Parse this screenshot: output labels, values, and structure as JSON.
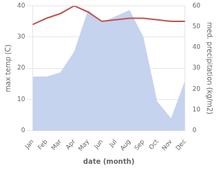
{
  "chart_data": {
    "type": "line",
    "categories": [
      "Jan",
      "Feb",
      "Mar",
      "Apr",
      "May",
      "Jun",
      "Jul",
      "Aug",
      "Sep",
      "Oct",
      "Nov",
      "Dec"
    ],
    "xlabel": "date (month)",
    "ylabel": "max temp (C)",
    "y2label": "med. precipitation (kg/m2)",
    "series": [
      {
        "type": "area",
        "color": "#c5d3ee",
        "axis": "y2",
        "values": [
          26,
          26,
          28,
          38,
          58,
          52,
          55,
          58,
          45,
          14,
          6,
          24
        ]
      },
      {
        "type": "line",
        "color": "#c0504d",
        "values": [
          34.0,
          36.0,
          37.5,
          40.0,
          38.0,
          35.0,
          35.5,
          36.0,
          36.0,
          35.5,
          35.0,
          35.0
        ]
      }
    ],
    "ylim": [
      0,
      40
    ],
    "yticks": [
      0,
      10,
      20,
      30,
      40
    ],
    "y2lim": [
      0,
      60
    ],
    "y2ticks": [
      0,
      10,
      20,
      30,
      40,
      50,
      60
    ],
    "grid": true
  }
}
